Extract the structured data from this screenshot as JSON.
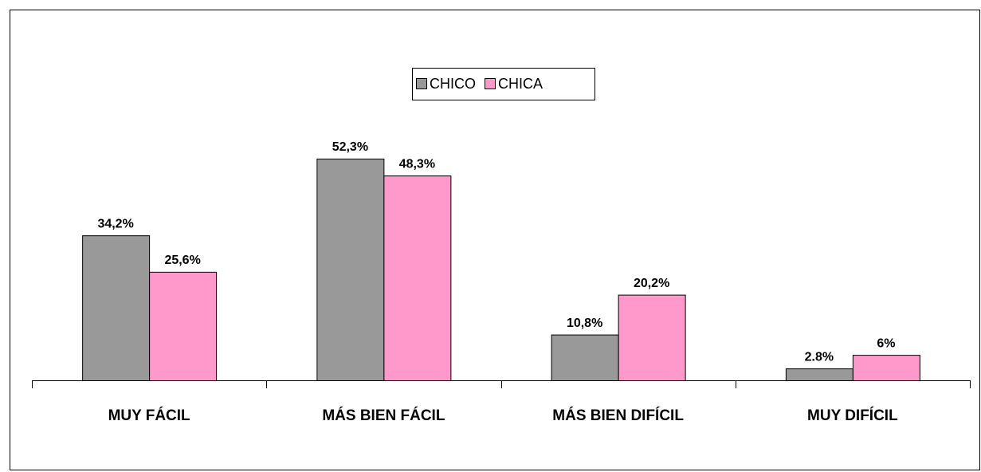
{
  "chart_data": {
    "type": "bar",
    "categories": [
      "MUY FÁCIL",
      "MÁS BIEN FÁCIL",
      "MÁS BIEN DIFÍCIL",
      "MUY DIFÍCIL"
    ],
    "series": [
      {
        "name": "CHICO",
        "color": "#999999",
        "values": [
          34.2,
          52.3,
          10.8,
          2.8
        ],
        "value_labels": [
          "34,2%",
          "52,3%",
          "10,8%",
          "2.8%"
        ]
      },
      {
        "name": "CHICA",
        "color": "#ff99cc",
        "values": [
          25.6,
          48.3,
          20.2,
          6
        ],
        "value_labels": [
          "25,6%",
          "48,3%",
          "20,2%",
          "6%"
        ]
      }
    ],
    "ylim": [
      0,
      60
    ],
    "legend": "top"
  }
}
